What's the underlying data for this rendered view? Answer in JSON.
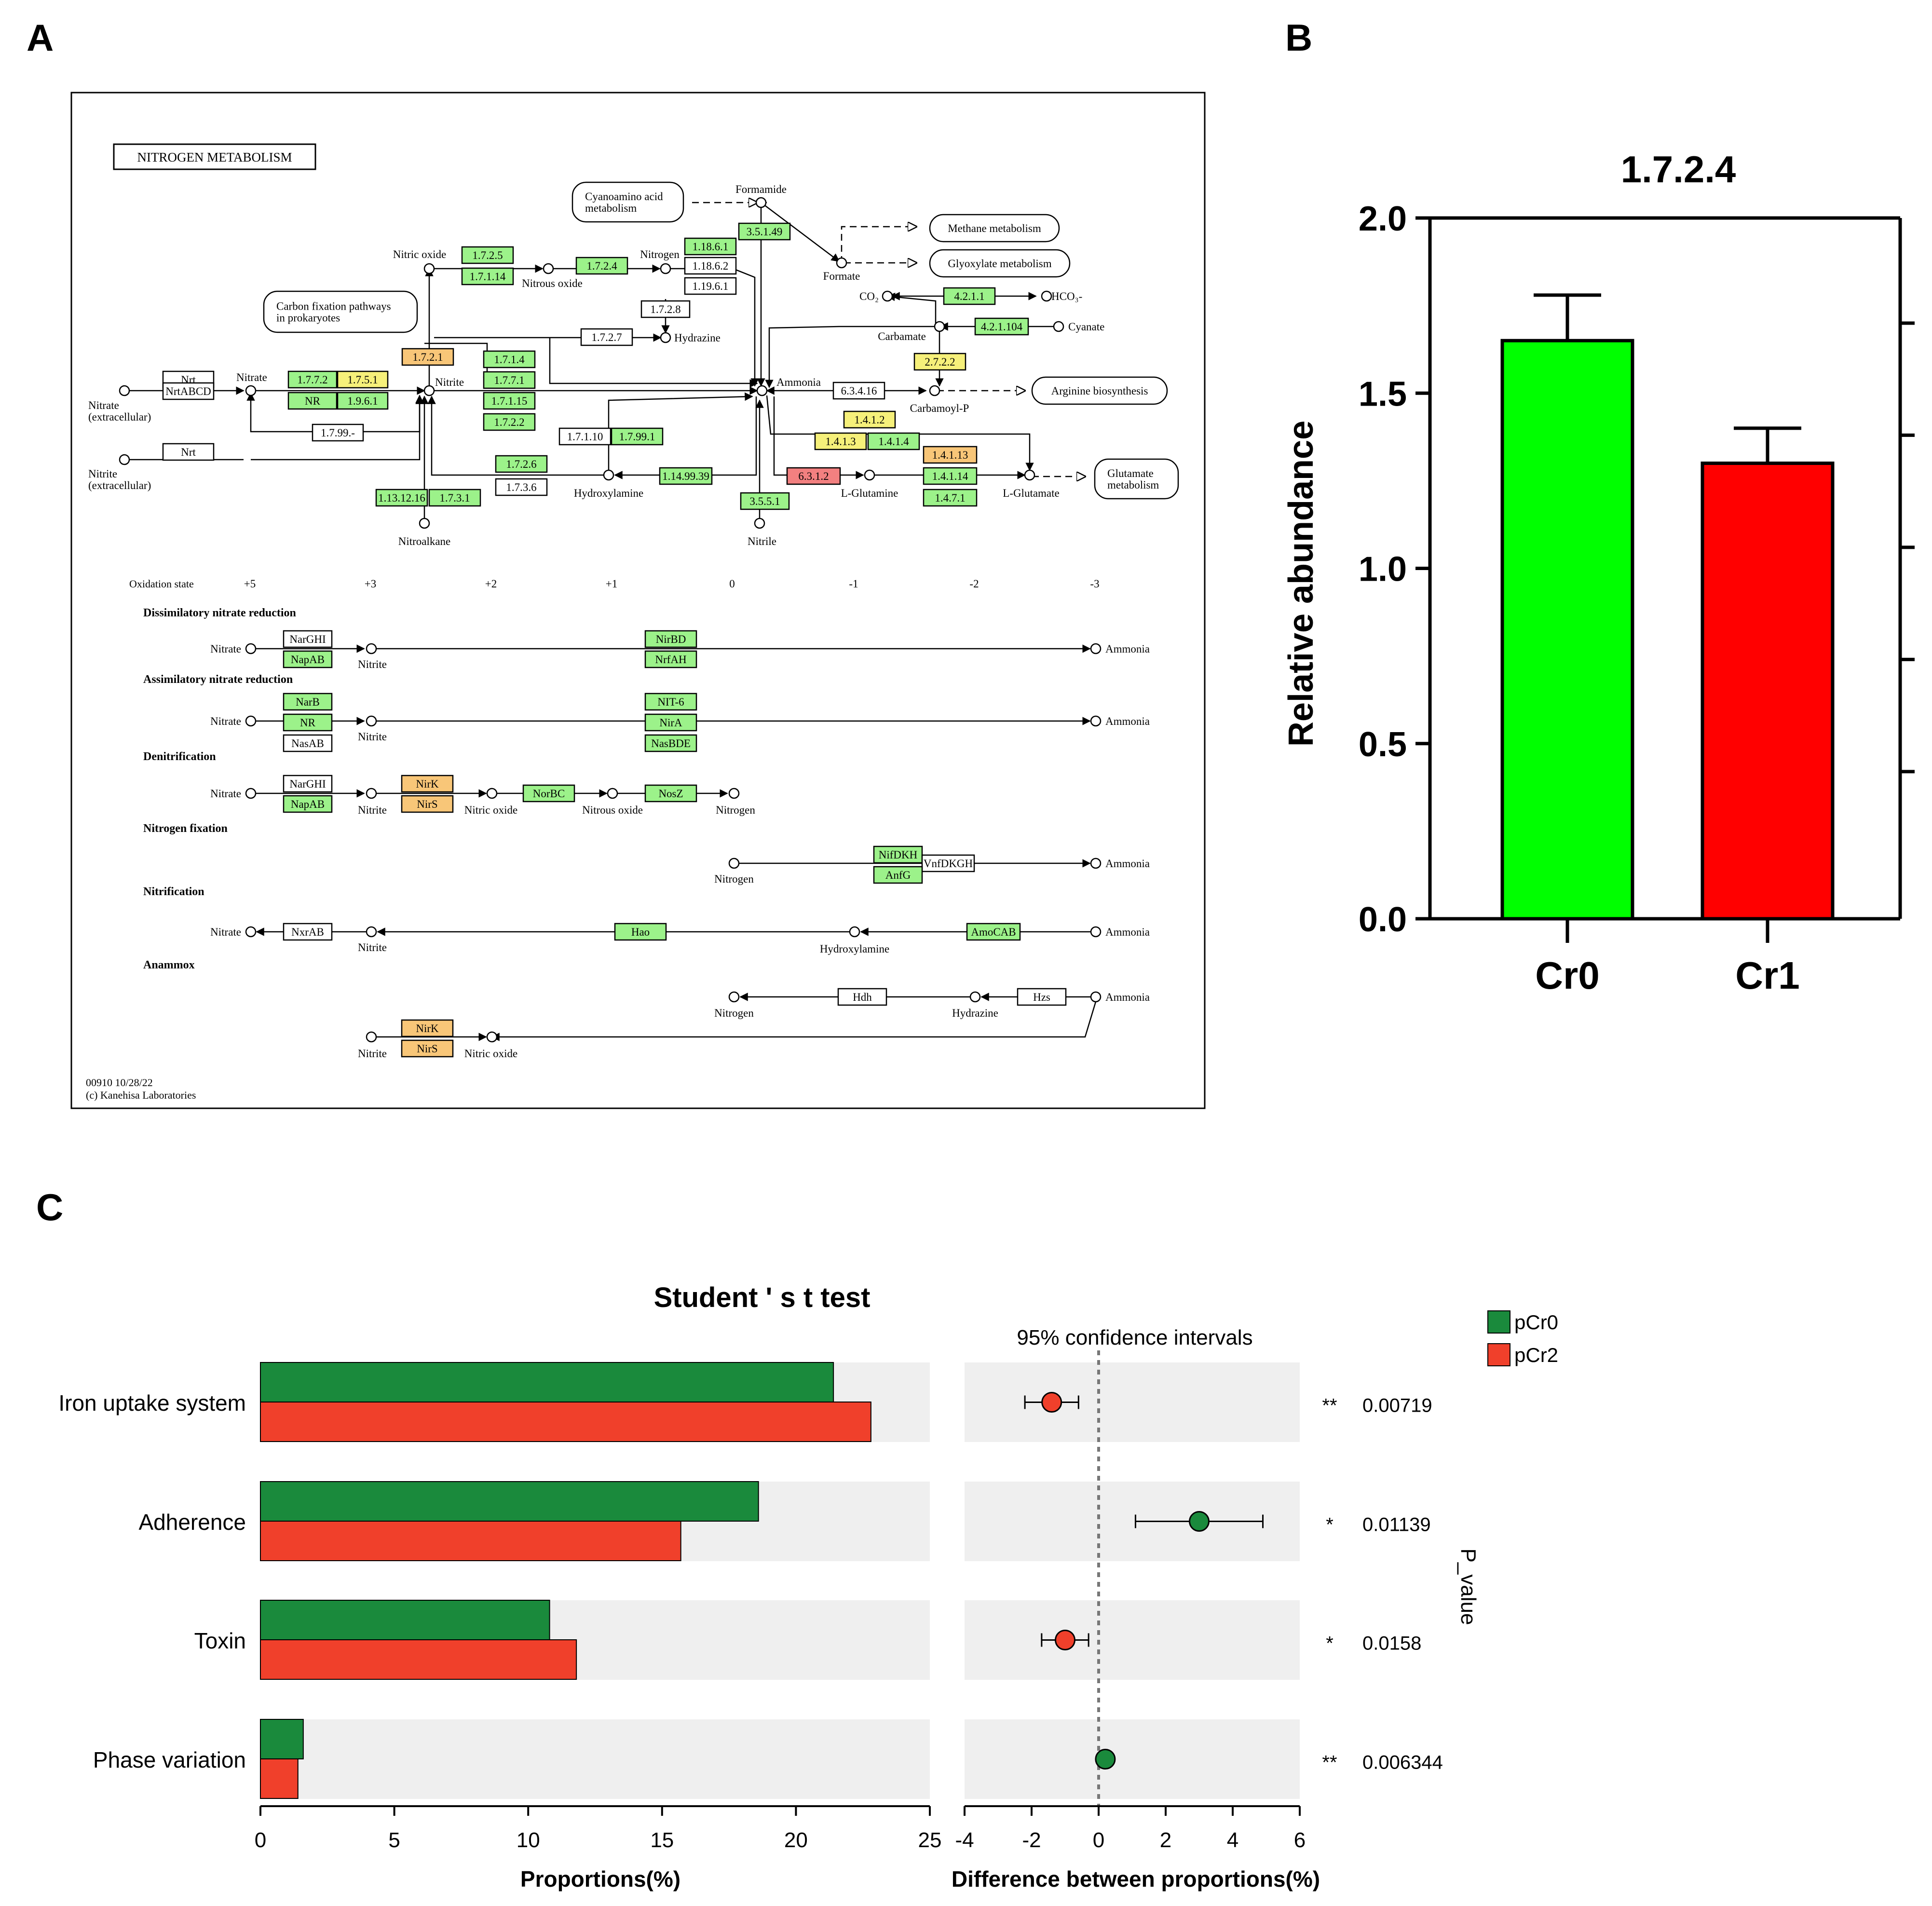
{
  "panels": {
    "a": "A",
    "b": "B",
    "c": "C"
  },
  "colors": {
    "green_box": "#9cf28a",
    "yellow_box": "#f6f07a",
    "orange_box": "#f8c678",
    "red_box": "#f28080",
    "white_box": "#ffffff",
    "bar_green": "#00ff00",
    "bar_red": "#ff0000",
    "pcr0": "#1a8a3c",
    "pcr2": "#f0402b",
    "ci_bg": "#efefef"
  },
  "kegg": {
    "title": "NITROGEN METABOLISM",
    "footer_id": "00910 10/28/22",
    "footer_copy": "(c) Kanehisa Laboratories",
    "oxidation_label": "Oxidation state",
    "oxidation_states": [
      "+5",
      "+3",
      "+2",
      "+1",
      "0",
      "-1",
      "-2",
      "-3"
    ],
    "map_labels": [
      {
        "key": "nitrate_ex",
        "text": "Nitrate"
      },
      {
        "key": "nitrate_ex2",
        "text": "(extracellular)"
      },
      {
        "key": "nitrite_ex",
        "text": "Nitrite"
      },
      {
        "key": "nitrite_ex2",
        "text": "(extracellular)"
      },
      {
        "key": "nitrate",
        "text": "Nitrate"
      },
      {
        "key": "nitrite",
        "text": "Nitrite"
      },
      {
        "key": "nitric_oxide",
        "text": "Nitric oxide"
      },
      {
        "key": "nitrous_oxide",
        "text": "Nitrous oxide"
      },
      {
        "key": "nitrogen",
        "text": "Nitrogen"
      },
      {
        "key": "hydrazine",
        "text": "Hydrazine"
      },
      {
        "key": "formamide",
        "text": "Formamide"
      },
      {
        "key": "formate",
        "text": "Formate"
      },
      {
        "key": "ammonia",
        "text": "Ammonia"
      },
      {
        "key": "co2",
        "text": "CO₂"
      },
      {
        "key": "hco3",
        "text": "HCO₃-"
      },
      {
        "key": "carbamate",
        "text": "Carbamate"
      },
      {
        "key": "cyanate",
        "text": "Cyanate"
      },
      {
        "key": "carbamoyl",
        "text": "Carbamoyl-P"
      },
      {
        "key": "hydroxylamine",
        "text": "Hydroxylamine"
      },
      {
        "key": "lglutamine",
        "text": "L-Glutamine"
      },
      {
        "key": "lglutamate",
        "text": "L-Glutamate"
      },
      {
        "key": "nitroalkane",
        "text": "Nitroalkane"
      },
      {
        "key": "nitrile",
        "text": "Nitrile"
      }
    ],
    "pathway_boxes": [
      {
        "key": "cyano",
        "line1": "Cyanoamino acid",
        "line2": "metabolism"
      },
      {
        "key": "methane",
        "line1": "Methane metabolism",
        "line2": ""
      },
      {
        "key": "glyox",
        "line1": "Glyoxylate metabolism",
        "line2": ""
      },
      {
        "key": "carbon",
        "line1": "Carbon fixation pathways",
        "line2": "in prokaryotes"
      },
      {
        "key": "arginine",
        "line1": "Arginine biosynthesis",
        "line2": ""
      },
      {
        "key": "glutamate",
        "line1": "Glutamate",
        "line2": "metabolism"
      }
    ],
    "enzymes": [
      {
        "key": "nrt1",
        "label": "Nrt",
        "color": "white_box"
      },
      {
        "key": "nrtabcd",
        "label": "NrtABCD",
        "color": "white_box"
      },
      {
        "key": "nrt2",
        "label": "Nrt",
        "color": "white_box"
      },
      {
        "key": "e1772",
        "label": "1.7.7.2",
        "color": "green_box"
      },
      {
        "key": "e1751",
        "label": "1.7.5.1",
        "color": "yellow_box"
      },
      {
        "key": "eNR",
        "label": "NR",
        "color": "green_box"
      },
      {
        "key": "e1961",
        "label": "1.9.6.1",
        "color": "green_box"
      },
      {
        "key": "e1799",
        "label": "1.7.99.-",
        "color": "white_box"
      },
      {
        "key": "e1725",
        "label": "1.7.2.5",
        "color": "green_box"
      },
      {
        "key": "e17114",
        "label": "1.7.1.14",
        "color": "green_box"
      },
      {
        "key": "e1724",
        "label": "1.7.2.4",
        "color": "green_box"
      },
      {
        "key": "e11861",
        "label": "1.18.6.1",
        "color": "green_box"
      },
      {
        "key": "e11862",
        "label": "1.18.6.2",
        "color": "white_box"
      },
      {
        "key": "e11961",
        "label": "1.19.6.1",
        "color": "white_box"
      },
      {
        "key": "e1728",
        "label": "1.7.2.8",
        "color": "white_box"
      },
      {
        "key": "e1727",
        "label": "1.7.2.7",
        "color": "white_box"
      },
      {
        "key": "e3514",
        "label": "3.5.1.49",
        "color": "green_box"
      },
      {
        "key": "e1721",
        "label": "1.7.2.1",
        "color": "orange_box"
      },
      {
        "key": "e1714",
        "label": "1.7.1.4",
        "color": "green_box"
      },
      {
        "key": "e1771",
        "label": "1.7.7.1",
        "color": "green_box"
      },
      {
        "key": "e17115",
        "label": "1.7.1.15",
        "color": "green_box"
      },
      {
        "key": "e1722",
        "label": "1.7.2.2",
        "color": "green_box"
      },
      {
        "key": "e4211",
        "label": "4.2.1.1",
        "color": "green_box"
      },
      {
        "key": "e421104",
        "label": "4.2.1.104",
        "color": "green_box"
      },
      {
        "key": "e2722",
        "label": "2.7.2.2",
        "color": "yellow_box"
      },
      {
        "key": "e63416",
        "label": "6.3.4.16",
        "color": "white_box"
      },
      {
        "key": "e1412",
        "label": "1.4.1.2",
        "color": "yellow_box"
      },
      {
        "key": "e1413",
        "label": "1.4.1.3",
        "color": "yellow_box"
      },
      {
        "key": "e1414",
        "label": "1.4.1.4",
        "color": "green_box"
      },
      {
        "key": "e17110",
        "label": "1.7.1.10",
        "color": "white_box"
      },
      {
        "key": "e17991",
        "label": "1.7.99.1",
        "color": "green_box"
      },
      {
        "key": "e1726",
        "label": "1.7.2.6",
        "color": "green_box"
      },
      {
        "key": "e1736",
        "label": "1.7.3.6",
        "color": "white_box"
      },
      {
        "key": "e113",
        "label": "1.13.12.16",
        "color": "green_box"
      },
      {
        "key": "e1731",
        "label": "1.7.3.1",
        "color": "green_box"
      },
      {
        "key": "e11499",
        "label": "1.14.99.39",
        "color": "green_box"
      },
      {
        "key": "e3551",
        "label": "3.5.5.1",
        "color": "green_box"
      },
      {
        "key": "e6312",
        "label": "6.3.1.2",
        "color": "red_box"
      },
      {
        "key": "e14113",
        "label": "1.4.1.13",
        "color": "orange_box"
      },
      {
        "key": "e14114",
        "label": "1.4.1.14",
        "color": "green_box"
      },
      {
        "key": "e1471",
        "label": "1.4.7.1",
        "color": "green_box"
      }
    ],
    "modules": {
      "dissimilatory": "Dissimilatory nitrate reduction",
      "assimilatory": "Assimilatory nitrate reduction",
      "denitrification": "Denitrification",
      "fixation": "Nitrogen fixation",
      "nitrification": "Nitrification",
      "anammox": "Anammox"
    },
    "module_labels": [
      {
        "key": "d_nitrate",
        "text": "Nitrate"
      },
      {
        "key": "d_nitrite",
        "text": "Nitrite"
      },
      {
        "key": "d_ammonia",
        "text": "Ammonia"
      },
      {
        "key": "a_nitrate",
        "text": "Nitrate"
      },
      {
        "key": "a_nitrite",
        "text": "Nitrite"
      },
      {
        "key": "a_ammonia",
        "text": "Ammonia"
      },
      {
        "key": "n_nitrate",
        "text": "Nitrate"
      },
      {
        "key": "n_nitrite",
        "text": "Nitrite"
      },
      {
        "key": "n_no",
        "text": "Nitric oxide"
      },
      {
        "key": "n_n2o",
        "text": "Nitrous oxide"
      },
      {
        "key": "n_n2",
        "text": "Nitrogen"
      },
      {
        "key": "f_n2",
        "text": "Nitrogen"
      },
      {
        "key": "f_ammonia",
        "text": "Ammonia"
      },
      {
        "key": "t_nitrate",
        "text": "Nitrate"
      },
      {
        "key": "t_nitrite",
        "text": "Nitrite"
      },
      {
        "key": "t_hydroxylamine",
        "text": "Hydroxylamine"
      },
      {
        "key": "t_ammonia",
        "text": "Ammonia"
      },
      {
        "key": "x_n2",
        "text": "Nitrogen"
      },
      {
        "key": "x_hydrazine",
        "text": "Hydrazine"
      },
      {
        "key": "x_ammonia",
        "text": "Ammonia"
      },
      {
        "key": "x_nitrite",
        "text": "Nitrite"
      },
      {
        "key": "x_no",
        "text": "Nitric oxide"
      }
    ],
    "module_enzymes": [
      {
        "key": "m_naghi1",
        "label": "NarGHI",
        "color": "white_box"
      },
      {
        "key": "m_napab1",
        "label": "NapAB",
        "color": "green_box"
      },
      {
        "key": "m_nirbd",
        "label": "NirBD",
        "color": "green_box"
      },
      {
        "key": "m_nrfah",
        "label": "NrfAH",
        "color": "green_box"
      },
      {
        "key": "m_narb",
        "label": "NarB",
        "color": "green_box"
      },
      {
        "key": "m_nr",
        "label": "NR",
        "color": "green_box"
      },
      {
        "key": "m_nasab",
        "label": "NasAB",
        "color": "white_box"
      },
      {
        "key": "m_nit6",
        "label": "NIT-6",
        "color": "green_box"
      },
      {
        "key": "m_nira",
        "label": "NirA",
        "color": "green_box"
      },
      {
        "key": "m_nasbde",
        "label": "NasBDE",
        "color": "green_box"
      },
      {
        "key": "m_naghi2",
        "label": "NarGHI",
        "color": "white_box"
      },
      {
        "key": "m_napab2",
        "label": "NapAB",
        "color": "green_box"
      },
      {
        "key": "m_nirk1",
        "label": "NirK",
        "color": "orange_box"
      },
      {
        "key": "m_nirs1",
        "label": "NirS",
        "color": "orange_box"
      },
      {
        "key": "m_norbc",
        "label": "NorBC",
        "color": "green_box"
      },
      {
        "key": "m_nosz",
        "label": "NosZ",
        "color": "green_box"
      },
      {
        "key": "m_nifdkh",
        "label": "NifDKH",
        "color": "green_box"
      },
      {
        "key": "m_vnf",
        "label": "VnfDKGH",
        "color": "white_box"
      },
      {
        "key": "m_anfg",
        "label": "AnfG",
        "color": "green_box"
      },
      {
        "key": "m_nxrab",
        "label": "NxrAB",
        "color": "white_box"
      },
      {
        "key": "m_hao",
        "label": "Hao",
        "color": "green_box"
      },
      {
        "key": "m_amocab",
        "label": "AmoCAB",
        "color": "green_box"
      },
      {
        "key": "m_hdh",
        "label": "Hdh",
        "color": "white_box"
      },
      {
        "key": "m_hzs",
        "label": "Hzs",
        "color": "white_box"
      },
      {
        "key": "m_nirk2",
        "label": "NirK",
        "color": "orange_box"
      },
      {
        "key": "m_nirs2",
        "label": "NirS",
        "color": "orange_box"
      }
    ]
  },
  "chart_data": [
    {
      "type": "bar",
      "title": "1.7.2.4",
      "categories": [
        "Cr0",
        "Cr1"
      ],
      "values": [
        1.65,
        1.3
      ],
      "errors": [
        0.13,
        0.1
      ],
      "colors": [
        "#00ff00",
        "#ff0000"
      ],
      "ylabel": "Relative abundance",
      "xlabel": "",
      "ylim": [
        0,
        2.0
      ],
      "yticks": [
        "0.0",
        "0.5",
        "1.0",
        "1.5",
        "2.0"
      ]
    },
    {
      "type": "bar",
      "title": "Student ' s t test",
      "orientation": "horizontal",
      "categories": [
        "Iron uptake system",
        "Adherence",
        "Toxin",
        "Phase variation"
      ],
      "series": [
        {
          "name": "pCr0",
          "values": [
            21.4,
            18.6,
            10.8,
            1.6
          ]
        },
        {
          "name": "pCr2",
          "values": [
            22.8,
            15.7,
            11.8,
            1.4
          ]
        }
      ],
      "xlabel": "Proportions(%)",
      "xlim": [
        0,
        25
      ],
      "xticks": [
        "0",
        "5",
        "10",
        "15",
        "20",
        "25"
      ]
    },
    {
      "type": "scatter",
      "title": "95% confidence intervals",
      "categories": [
        "Iron uptake system",
        "Adherence",
        "Toxin",
        "Phase variation"
      ],
      "estimates": [
        -1.4,
        3.0,
        -1.0,
        0.2
      ],
      "ci_low": [
        -2.2,
        1.1,
        -1.7,
        0.2
      ],
      "ci_high": [
        -0.6,
        4.9,
        -0.3,
        0.2
      ],
      "favours": [
        "pCr2",
        "pCr0",
        "pCr2",
        "pCr0"
      ],
      "xlabel": "Difference between proportions(%)",
      "xlim": [
        -4,
        6
      ],
      "xticks": [
        "-4",
        "-2",
        "0",
        "2",
        "4",
        "6"
      ],
      "p_values": [
        "0.00719",
        "0.01139",
        "0.0158",
        "0.006344"
      ],
      "significance": [
        "**",
        "*",
        "*",
        "**"
      ],
      "p_axis_label": "P_value"
    }
  ]
}
